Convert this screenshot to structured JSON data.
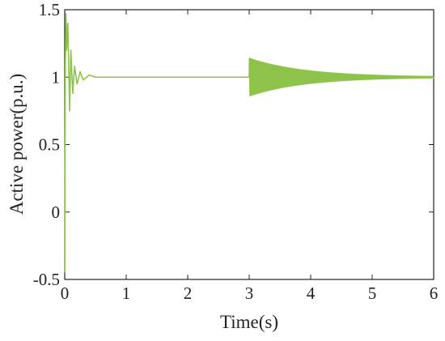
{
  "chart_data": {
    "type": "line",
    "title": "",
    "xlabel": "Time(s)",
    "ylabel": "Active power(p.u.)",
    "xlim": [
      0,
      6
    ],
    "ylim": [
      -0.5,
      1.5
    ],
    "xticks": [
      "0",
      "1",
      "2",
      "3",
      "4",
      "5",
      "6"
    ],
    "yticks": [
      "-0.5",
      "0",
      "0.5",
      "1",
      "1.5"
    ],
    "grid": false,
    "legend": "none",
    "line_color": "#8dc34a",
    "series": [
      {
        "description": "start-up transient then oscillation burst at t=3s decaying to 1 p.u.",
        "x": [
          0,
          0.005,
          0.01,
          0.02,
          0.03,
          0.05,
          0.08,
          0.1,
          0.13,
          0.16,
          0.2,
          0.25,
          0.3,
          0.4,
          0.5,
          1,
          2,
          2.99,
          3,
          3.5,
          4,
          4.5,
          5,
          6
        ],
        "y": [
          -0.45,
          0.5,
          1.1,
          1.47,
          1.2,
          1.4,
          0.75,
          1.2,
          0.88,
          1.08,
          0.95,
          1.04,
          0.98,
          1.015,
          1.0,
          1.0,
          1.0,
          1.0,
          1.15,
          1.07,
          1.04,
          1.02,
          1.01,
          1.0
        ]
      }
    ]
  }
}
